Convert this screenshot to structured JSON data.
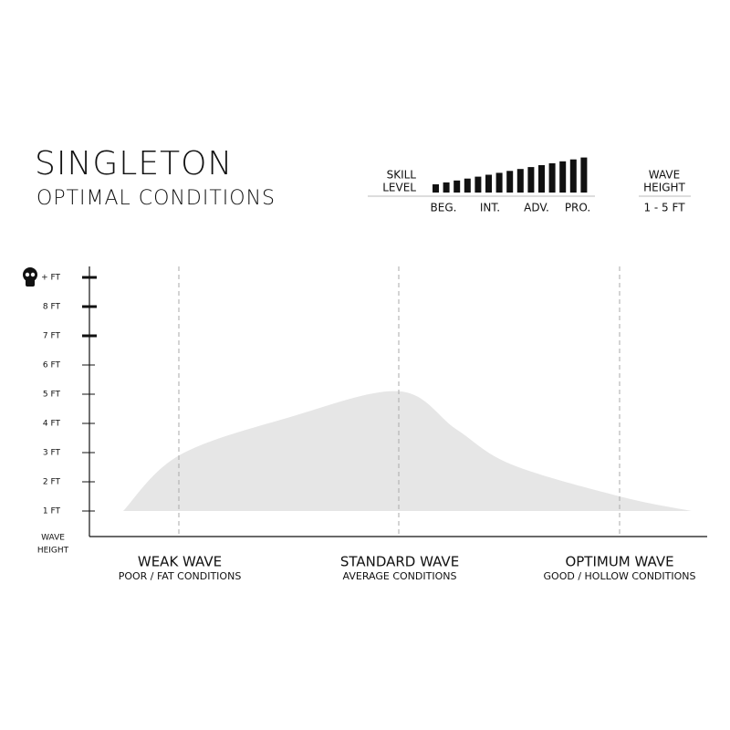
{
  "header": {
    "title": "SINGLETON",
    "subtitle": "OPTIMAL CONDITIONS"
  },
  "skill": {
    "label_lines": [
      "SKILL",
      "LEVEL"
    ],
    "levels": [
      "BEG.",
      "INT.",
      "ADV.",
      "PRO."
    ]
  },
  "wave_height": {
    "label_lines": [
      "WAVE",
      "HEIGHT"
    ],
    "range": "1 - 5 FT"
  },
  "chart_data": {
    "type": "area",
    "y_label_lines": [
      "WAVE",
      "HEIGHT"
    ],
    "conditions": [
      {
        "label": "WEAK WAVE",
        "note": "POOR / FAT CONDITIONS"
      },
      {
        "label": "STANDARD WAVE",
        "note": "AVERAGE CONDITIONS"
      },
      {
        "label": "OPTIMUM WAVE",
        "note": "GOOD / HOLLOW CONDITIONS"
      }
    ],
    "values": [
      1,
      2.9,
      4.2,
      5.1,
      3.8,
      2.6,
      1.5,
      1
    ],
    "color": "#e6e6e6",
    "ylim": [
      0,
      9
    ],
    "yticks": [
      {
        "value": 1,
        "label": "1 FT"
      },
      {
        "value": 2,
        "label": "2 FT"
      },
      {
        "value": 3,
        "label": "3 FT"
      },
      {
        "value": 4,
        "label": "4 FT"
      },
      {
        "value": 5,
        "label": "5 FT"
      },
      {
        "value": 6,
        "label": "6 FT"
      },
      {
        "value": 7,
        "label": "7 FT"
      },
      {
        "value": 8,
        "label": "8 FT"
      },
      {
        "value": 9,
        "label": "+ FT"
      }
    ]
  }
}
